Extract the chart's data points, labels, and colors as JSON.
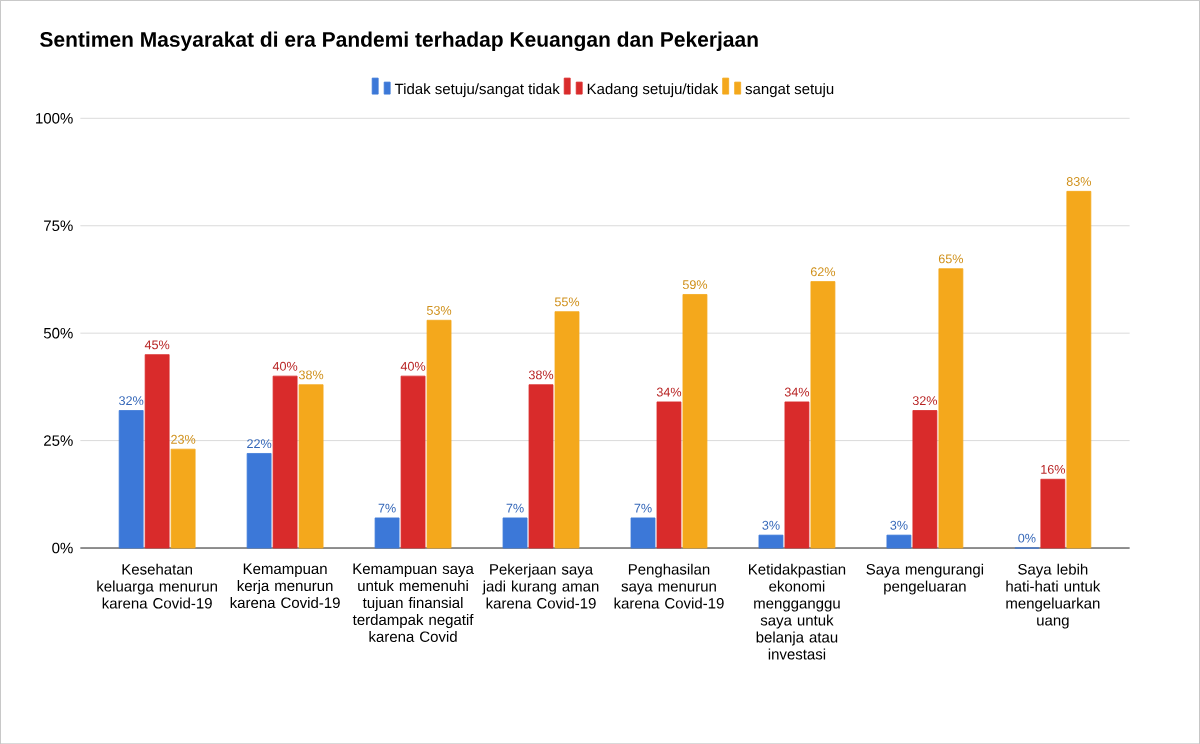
{
  "chart_data": {
    "type": "bar",
    "title": "Sentimen Masyarakat di era Pandemi terhadap Keuangan dan Pekerjaan",
    "categories": [
      "Kesehatan keluarga menurun karena Covid-19",
      "Kemampuan kerja menurun karena Covid-19",
      "Kemampuan saya untuk memenuhi tujuan finansial terdampak negatif karena Covid",
      "Pekerjaan saya jadi kurang aman karena Covid-19",
      "Penghasilan saya menurun karena Covid-19",
      "Ketidakpastian ekonomi mengganggu saya untuk belanja atau investasi",
      "Saya mengurangi pengeluaran",
      "Saya lebih hati-hati untuk mengeluarkan uang"
    ],
    "series": [
      {
        "name": "Tidak setuju/sangat tidak",
        "color": "#3c78d8",
        "values": [
          32,
          22,
          7,
          7,
          7,
          3,
          3,
          0
        ],
        "value_labels": [
          "32%",
          "22%",
          "7%",
          "7%",
          "7%",
          "3%",
          "3%",
          "0%"
        ]
      },
      {
        "name": "Kadang setuju/tidak",
        "color": "#d92b2b",
        "values": [
          45,
          40,
          40,
          38,
          34,
          34,
          32,
          16
        ],
        "value_labels": [
          "45%",
          "40%",
          "40%",
          "38%",
          "34%",
          "34%",
          "32%",
          "16%"
        ]
      },
      {
        "name": "sangat setuju",
        "color": "#f4a81c",
        "values": [
          23,
          38,
          53,
          55,
          59,
          62,
          65,
          83
        ],
        "value_labels": [
          "23%",
          "38%",
          "53%",
          "55%",
          "59%",
          "62%",
          "65%",
          "83%"
        ]
      }
    ],
    "ylim": [
      0,
      100
    ],
    "yticks": [
      {
        "value": 0,
        "label": "0%"
      },
      {
        "value": 25,
        "label": "25%"
      },
      {
        "value": 50,
        "label": "50%"
      },
      {
        "value": 75,
        "label": "75%"
      },
      {
        "value": 100,
        "label": "100%"
      }
    ],
    "grid": "y",
    "legend": "top"
  }
}
